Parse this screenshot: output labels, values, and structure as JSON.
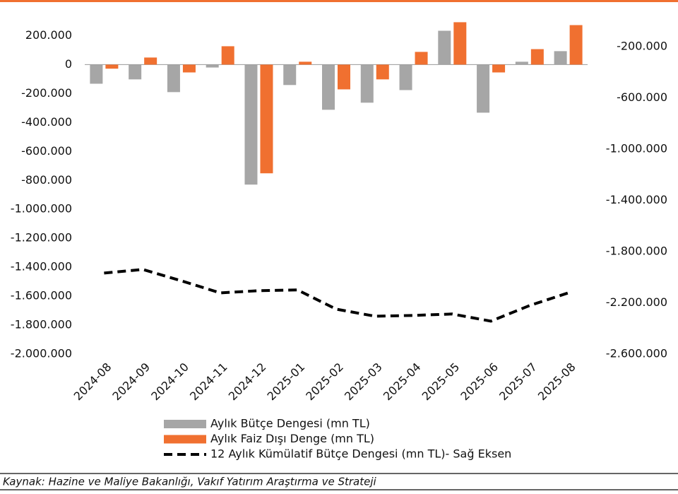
{
  "chart_data": {
    "type": "bar",
    "categories": [
      "2024-08",
      "2024-09",
      "2024-10",
      "2024-11",
      "2024-12",
      "2025-01",
      "2025-02",
      "2025-03",
      "2025-04",
      "2025-05",
      "2025-06",
      "2025-07",
      "2025-08"
    ],
    "series": [
      {
        "name": "Aylık Bütçe Dengesi (mn TL)",
        "color": "#a6a6a6",
        "values": [
          -132000,
          -102000,
          -190000,
          -20000,
          -829000,
          -141000,
          -312000,
          -263000,
          -176000,
          234000,
          -332000,
          20000,
          93000
        ]
      },
      {
        "name": "Aylık Faiz Dışı Denge (mn TL)",
        "color": "#f07030",
        "values": [
          -28000,
          49000,
          -54000,
          127000,
          -751000,
          20000,
          -171000,
          -102000,
          88000,
          293000,
          -54000,
          107000,
          273000
        ]
      },
      {
        "name": "12 Aylık Kümülatif Bütçe Dengesi (mn TL)- Sağ Eksen",
        "color": "#000000",
        "type": "line",
        "axis": "y2",
        "dashed": true,
        "values": [
          -1967000,
          -1939000,
          -2028000,
          -2122000,
          -2105000,
          -2099000,
          -2249000,
          -2304000,
          -2298000,
          -2287000,
          -2343000,
          -2221000,
          -2122000
        ]
      }
    ],
    "ylim": [
      -2000000,
      300000
    ],
    "yticks": [
      {
        "value": 200000,
        "label": "200.000"
      },
      0,
      {
        "value": -200000,
        "label": "-200.000"
      },
      {
        "value": -400000,
        "label": "-400.000"
      },
      {
        "value": -600000,
        "label": "-600.000"
      },
      {
        "value": -800000,
        "label": "-800.000"
      },
      {
        "value": -1000000,
        "label": "-1.000.000"
      },
      {
        "value": -1200000,
        "label": "-1.200.000"
      },
      {
        "value": -1400000,
        "label": "-1.400.000"
      },
      {
        "value": -1600000,
        "label": "-1.600.000"
      },
      {
        "value": -1800000,
        "label": "-1.800.000"
      },
      {
        "value": -2000000,
        "label": "-2.000.000"
      }
    ],
    "y2lim": [
      -2600000,
      0
    ],
    "y2ticks": [
      {
        "value": -200000,
        "label": "-200.000"
      },
      {
        "value": -600000,
        "label": "-600.000"
      },
      {
        "value": -1000000,
        "label": "-1.000.000"
      },
      {
        "value": -1400000,
        "label": "-1.400.000"
      },
      {
        "value": -1800000,
        "label": "-1.800.000"
      },
      {
        "value": -2200000,
        "label": "-2.200.000"
      },
      {
        "value": -2600000,
        "label": "-2.600.000"
      }
    ],
    "source": "Kaynak: Hazine ve Maliye Bakanlığı, Vakıf Yatırım Araştırma ve Strateji"
  }
}
